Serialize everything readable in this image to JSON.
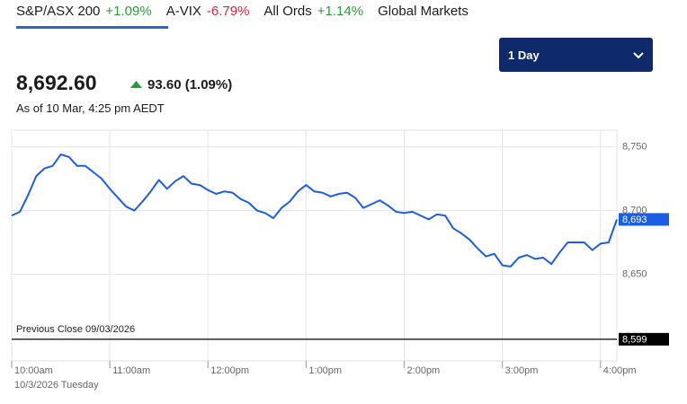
{
  "tabs": [
    {
      "name": "S&P/ASX 200",
      "change": "+1.09%"
    },
    {
      "name": "A-VIX",
      "change": "-6.79%"
    },
    {
      "name": "All Ords",
      "change": "+1.14%"
    },
    {
      "name": "Global Markets"
    }
  ],
  "range_selector": "1 Day",
  "quote": {
    "price": "8,692.60",
    "change": "93.60 (1.09%)",
    "as_of": "As of 10 Mar, 4:25 pm AEDT"
  },
  "chart_data": {
    "type": "line",
    "x": [
      "10:00am",
      "10:05am",
      "10:10am",
      "10:15am",
      "10:20am",
      "10:25am",
      "10:30am",
      "10:35am",
      "10:40am",
      "10:45am",
      "10:50am",
      "10:55am",
      "11:00am",
      "11:05am",
      "11:10am",
      "11:15am",
      "11:20am",
      "11:25am",
      "11:30am",
      "11:35am",
      "11:40am",
      "11:45am",
      "11:50am",
      "11:55am",
      "12:00pm",
      "12:05pm",
      "12:10pm",
      "12:15pm",
      "12:20pm",
      "12:25pm",
      "12:30pm",
      "12:35pm",
      "12:40pm",
      "12:45pm",
      "12:50pm",
      "12:55pm",
      "1:00pm",
      "1:05pm",
      "1:10pm",
      "1:15pm",
      "1:20pm",
      "1:25pm",
      "1:30pm",
      "1:35pm",
      "1:40pm",
      "1:45pm",
      "1:50pm",
      "1:55pm",
      "2:00pm",
      "2:05pm",
      "2:10pm",
      "2:15pm",
      "2:20pm",
      "2:25pm",
      "2:30pm",
      "2:35pm",
      "2:40pm",
      "2:45pm",
      "2:50pm",
      "2:55pm",
      "3:00pm",
      "3:05pm",
      "3:10pm",
      "3:15pm",
      "3:20pm",
      "3:25pm",
      "3:30pm",
      "3:35pm",
      "3:40pm",
      "3:45pm",
      "3:50pm",
      "3:55pm",
      "4:00pm",
      "4:05pm",
      "4:10pm"
    ],
    "series": [
      {
        "color": "#1b5ee6",
        "values": [
          8696,
          8699,
          8712,
          8727,
          8733,
          8735,
          8744,
          8742,
          8735,
          8735,
          8730,
          8725,
          8717,
          8710,
          8703,
          8700,
          8707,
          8715,
          8724,
          8717,
          8723,
          8727,
          8721,
          8720,
          8716,
          8713,
          8715,
          8714,
          8709,
          8706,
          8700,
          8698,
          8694,
          8702,
          8707,
          8715,
          8720,
          8715,
          8714,
          8711,
          8713,
          8714,
          8710,
          8702,
          8705,
          8708,
          8704,
          8699,
          8698,
          8699,
          8696,
          8693,
          8697,
          8696,
          8686,
          8682,
          8677,
          8670,
          8664,
          8666,
          8657,
          8656,
          8663,
          8665,
          8662,
          8663,
          8658,
          8667,
          8675,
          8675,
          8675,
          8669,
          8674,
          8675,
          8693
        ]
      }
    ],
    "xlim": [
      "10:00am",
      "4:10pm"
    ],
    "xticks": [
      "10:00am",
      "11:00am",
      "12:00pm",
      "1:00pm",
      "2:00pm",
      "3:00pm",
      "4:00pm"
    ],
    "ylim": [
      8582,
      8763
    ],
    "yticks": [
      {
        "value": 8650,
        "label": "8,650"
      },
      {
        "value": 8700,
        "label": "8,700"
      },
      {
        "value": 8750,
        "label": "8,750"
      }
    ],
    "grid": true,
    "date_label": "10/3/2026 Tuesday",
    "previous_close": {
      "text": "Previous Close 09/03/2026",
      "value": 8599,
      "label": "8,599"
    },
    "last_value": {
      "value": 8693,
      "label": "8,693"
    }
  }
}
